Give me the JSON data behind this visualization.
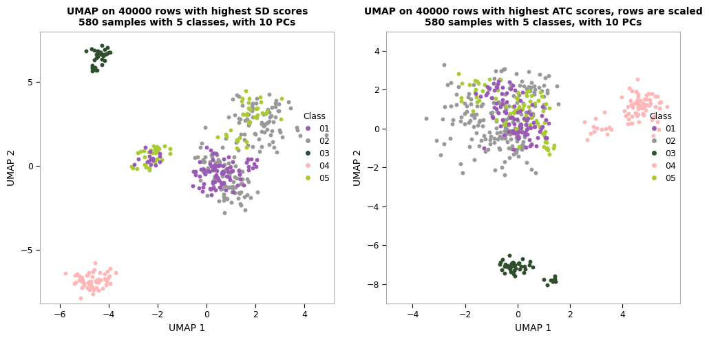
{
  "title1": "UMAP on 40000 rows with highest SD scores\n580 samples with 5 classes, with 10 PCs",
  "title2": "UMAP on 40000 rows with highest ATC scores, rows are scaled\n580 samples with 5 classes, with 10 PCs",
  "xlabel": "UMAP 1",
  "ylabel": "UMAP 2",
  "class_labels": [
    "01",
    "02",
    "03",
    "04",
    "05"
  ],
  "class_colors": [
    "#9B59B6",
    "#999999",
    "#2E4E2E",
    "#FFB6B6",
    "#AACC33"
  ],
  "plot1_xlim": [
    -6.8,
    5.2
  ],
  "plot1_ylim": [
    -8.2,
    8.0
  ],
  "plot1_xticks": [
    -6,
    -4,
    -2,
    0,
    2,
    4
  ],
  "plot1_yticks": [
    -5,
    0,
    5
  ],
  "plot2_xlim": [
    -5.0,
    6.2
  ],
  "plot2_ylim": [
    -9.0,
    5.0
  ],
  "plot2_xticks": [
    -4,
    -2,
    0,
    2,
    4
  ],
  "plot2_yticks": [
    -8,
    -6,
    -4,
    -2,
    0,
    2,
    4
  ],
  "bg_color": "#FFFFFF",
  "spine_color": "#AAAAAA",
  "point_size": 18,
  "font_size": 10,
  "tick_font_size": 9
}
